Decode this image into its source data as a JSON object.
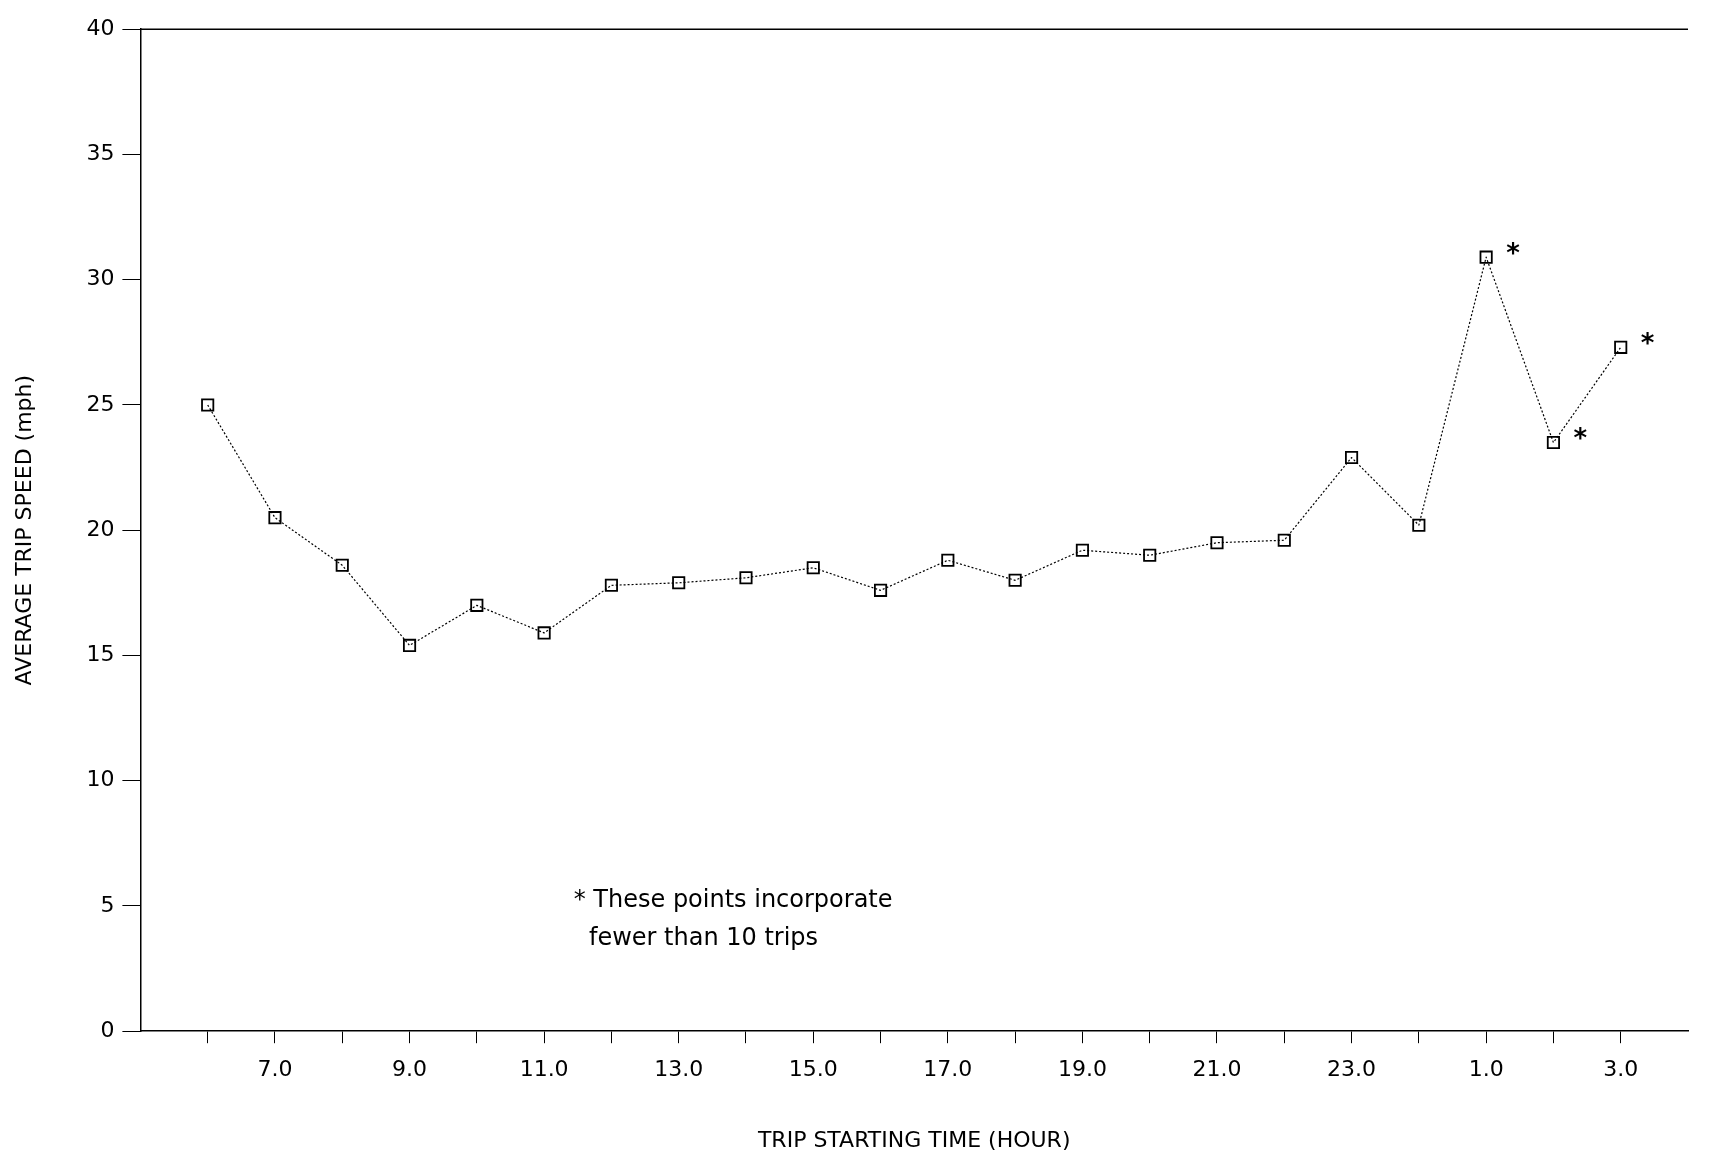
{
  "chart_data": {
    "type": "line",
    "xlabel": "TRIP STARTING TIME (HOUR)",
    "ylabel": "AVERAGE TRIP SPEED (mph)",
    "categories": [
      null,
      "7.0",
      null,
      "9.0",
      null,
      "11.0",
      null,
      "13.0",
      null,
      "15.0",
      null,
      "17.0",
      null,
      "19.0",
      null,
      "21.0",
      null,
      "23.0",
      null,
      "1.0",
      null,
      "3.0"
    ],
    "series": [
      {
        "color": "#000000",
        "values": [
          25.0,
          20.5,
          18.6,
          15.4,
          17.0,
          15.9,
          17.8,
          17.9,
          18.1,
          18.5,
          17.6,
          18.8,
          18.0,
          19.2,
          19.0,
          19.5,
          19.6,
          22.9,
          20.2,
          30.9,
          23.5,
          27.3
        ],
        "value_labels": [
          null,
          null,
          null,
          null,
          null,
          null,
          null,
          null,
          null,
          null,
          null,
          null,
          null,
          null,
          null,
          null,
          null,
          null,
          null,
          "*",
          "*",
          "*"
        ]
      }
    ],
    "ylim": [
      0,
      40
    ],
    "yticks": [
      0,
      5,
      10,
      15,
      20,
      25,
      30,
      35,
      40
    ],
    "annotations": [
      "* These points incorporate\n  fewer than 10 trips"
    ],
    "grid": false,
    "legend": false,
    "marker": "square",
    "line_style": "dotted"
  }
}
